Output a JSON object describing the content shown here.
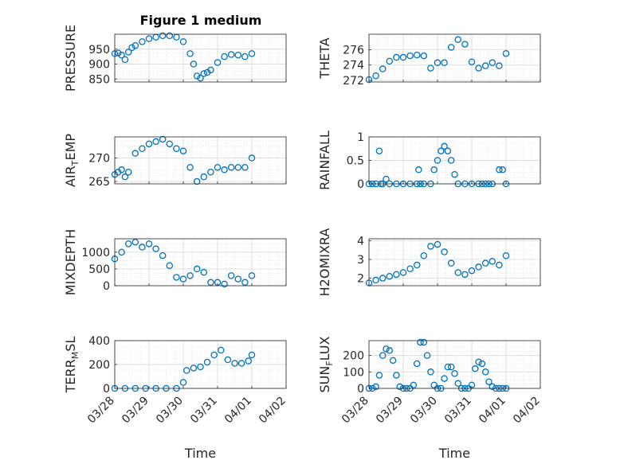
{
  "figure_title": "Figure 1 medium",
  "x_axis": {
    "label": "Time",
    "ticks": [
      "03/28",
      "03/29",
      "03/30",
      "03/31",
      "04/01",
      "04/02"
    ],
    "range_days": [
      0,
      5
    ]
  },
  "colors": {
    "marker": "#0072BD",
    "grid": "#dcdcdc",
    "axis": "#262626",
    "background": "#ffffff"
  },
  "chart_data": [
    {
      "type": "scatter",
      "ylabel": "PRESSURE",
      "ylim": [
        840,
        1000
      ],
      "yticks": [
        850,
        900,
        950
      ],
      "grid": true,
      "minor_grid": true,
      "x": [
        0.0,
        0.1,
        0.2,
        0.3,
        0.4,
        0.5,
        0.6,
        0.8,
        1.0,
        1.2,
        1.4,
        1.6,
        1.8,
        2.0,
        2.2,
        2.3,
        2.4,
        2.5,
        2.6,
        2.7,
        2.8,
        3.0,
        3.2,
        3.4,
        3.6,
        3.8,
        4.0
      ],
      "y": [
        935,
        937,
        930,
        915,
        940,
        955,
        962,
        975,
        985,
        990,
        995,
        995,
        990,
        975,
        935,
        900,
        860,
        853,
        868,
        872,
        880,
        905,
        925,
        932,
        930,
        925,
        935
      ]
    },
    {
      "type": "scatter",
      "ylabel": "THETA",
      "ylim": [
        271.8,
        278
      ],
      "yticks": [
        272,
        274,
        276
      ],
      "grid": true,
      "minor_grid": true,
      "x": [
        0.0,
        0.2,
        0.4,
        0.6,
        0.8,
        1.0,
        1.2,
        1.4,
        1.6,
        1.8,
        2.0,
        2.2,
        2.4,
        2.6,
        2.8,
        3.0,
        3.2,
        3.4,
        3.6,
        3.8,
        4.0
      ],
      "y": [
        272.1,
        272.6,
        273.5,
        274.5,
        275.0,
        275.0,
        275.2,
        275.3,
        275.2,
        273.6,
        274.3,
        274.3,
        276.3,
        277.3,
        276.7,
        274.4,
        273.6,
        273.9,
        274.3,
        273.9,
        275.5
      ]
    },
    {
      "type": "scatter",
      "ylabel": "AIR_TEMP",
      "ylim": [
        264.5,
        274.5
      ],
      "yticks": [
        265,
        270
      ],
      "grid": true,
      "minor_grid": true,
      "x": [
        0.0,
        0.1,
        0.2,
        0.3,
        0.4,
        0.6,
        0.8,
        1.0,
        1.2,
        1.4,
        1.6,
        1.8,
        2.0,
        2.2,
        2.4,
        2.6,
        2.8,
        3.0,
        3.2,
        3.4,
        3.6,
        3.8,
        4.0
      ],
      "y": [
        266.5,
        267.0,
        267.5,
        266.0,
        267.0,
        271.0,
        272.0,
        273.0,
        273.5,
        274.0,
        273.0,
        272.0,
        271.5,
        268.0,
        265.0,
        266.0,
        267.0,
        268.0,
        267.5,
        268.0,
        268.0,
        268.0,
        270.0
      ]
    },
    {
      "type": "scatter",
      "ylabel": "RAINFALL",
      "ylim": [
        0,
        1
      ],
      "yticks": [
        0,
        0.5,
        1
      ],
      "ytick_labels": [
        "0",
        "0.5",
        "1"
      ],
      "grid": true,
      "minor_grid": true,
      "x": [
        0.0,
        0.1,
        0.2,
        0.3,
        0.35,
        0.4,
        0.5,
        0.6,
        0.8,
        1.0,
        1.2,
        1.4,
        1.45,
        1.5,
        1.6,
        1.8,
        1.9,
        2.0,
        2.1,
        2.2,
        2.3,
        2.4,
        2.5,
        2.6,
        2.8,
        3.0,
        3.2,
        3.3,
        3.4,
        3.5,
        3.6,
        3.8,
        3.9,
        4.0
      ],
      "y": [
        0,
        0,
        0,
        0.7,
        0,
        0,
        0.1,
        0,
        0,
        0,
        0,
        0,
        0.3,
        0,
        0,
        0,
        0.3,
        0.5,
        0.7,
        0.8,
        0.7,
        0.5,
        0.2,
        0,
        0,
        0,
        0,
        0,
        0,
        0,
        0,
        0.3,
        0.3,
        0
      ]
    },
    {
      "type": "scatter",
      "ylabel": "MIXDEPTH",
      "ylim": [
        0,
        1400
      ],
      "yticks": [
        0,
        500,
        1000
      ],
      "grid": true,
      "minor_grid": true,
      "x": [
        0.0,
        0.2,
        0.4,
        0.6,
        0.8,
        1.0,
        1.2,
        1.4,
        1.6,
        1.8,
        2.0,
        2.2,
        2.4,
        2.6,
        2.8,
        3.0,
        3.2,
        3.4,
        3.6,
        3.8,
        4.0
      ],
      "y": [
        800,
        1000,
        1250,
        1300,
        1150,
        1250,
        1100,
        900,
        600,
        250,
        200,
        300,
        500,
        400,
        100,
        100,
        50,
        300,
        200,
        100,
        300
      ]
    },
    {
      "type": "scatter",
      "ylabel": "H2OMIXRA",
      "ylim": [
        1.6,
        4.1
      ],
      "yticks": [
        2,
        3,
        4
      ],
      "grid": true,
      "minor_grid": true,
      "x": [
        0.0,
        0.2,
        0.4,
        0.6,
        0.8,
        1.0,
        1.2,
        1.4,
        1.6,
        1.8,
        2.0,
        2.2,
        2.4,
        2.6,
        2.8,
        3.0,
        3.2,
        3.4,
        3.6,
        3.8,
        4.0
      ],
      "y": [
        1.75,
        1.9,
        2.0,
        2.1,
        2.2,
        2.3,
        2.5,
        2.7,
        3.2,
        3.7,
        3.8,
        3.4,
        2.8,
        2.3,
        2.2,
        2.4,
        2.6,
        2.8,
        2.9,
        2.7,
        3.2
      ]
    },
    {
      "type": "scatter",
      "ylabel": "TERR_MSL",
      "ylim": [
        0,
        400
      ],
      "yticks": [
        0,
        200,
        400
      ],
      "grid": true,
      "minor_grid": true,
      "x": [
        0.0,
        0.3,
        0.6,
        0.9,
        1.2,
        1.5,
        1.8,
        2.0,
        2.1,
        2.3,
        2.5,
        2.7,
        2.9,
        3.1,
        3.3,
        3.5,
        3.7,
        3.9,
        4.0
      ],
      "y": [
        0,
        0,
        0,
        0,
        0,
        0,
        0,
        50,
        150,
        170,
        180,
        220,
        280,
        320,
        240,
        210,
        210,
        230,
        280
      ]
    },
    {
      "type": "scatter",
      "ylabel": "SUN_FLUX",
      "ylim": [
        0,
        290
      ],
      "yticks": [
        0,
        100,
        200
      ],
      "grid": true,
      "minor_grid": true,
      "x": [
        0.0,
        0.1,
        0.2,
        0.3,
        0.4,
        0.5,
        0.6,
        0.7,
        0.8,
        0.9,
        1.0,
        1.1,
        1.2,
        1.3,
        1.4,
        1.5,
        1.6,
        1.7,
        1.8,
        1.9,
        2.0,
        2.1,
        2.2,
        2.3,
        2.4,
        2.5,
        2.6,
        2.7,
        2.8,
        2.9,
        3.0,
        3.1,
        3.2,
        3.3,
        3.4,
        3.5,
        3.6,
        3.7,
        3.8,
        3.9,
        4.0
      ],
      "y": [
        0,
        0,
        10,
        80,
        200,
        240,
        230,
        170,
        80,
        10,
        0,
        0,
        0,
        20,
        150,
        280,
        280,
        200,
        100,
        20,
        0,
        0,
        60,
        130,
        130,
        90,
        30,
        0,
        0,
        0,
        20,
        120,
        160,
        150,
        100,
        40,
        10,
        0,
        0,
        0,
        0
      ]
    }
  ]
}
